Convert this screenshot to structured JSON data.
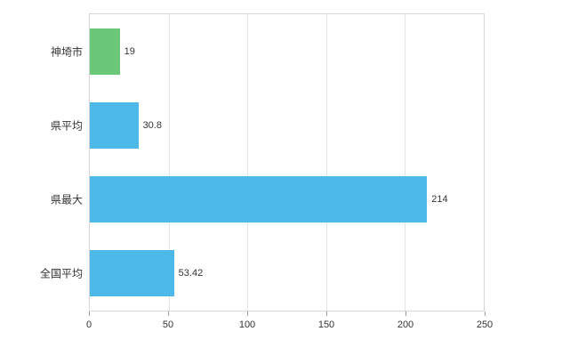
{
  "chart_data": {
    "type": "bar",
    "orientation": "horizontal",
    "title": "",
    "xlabel": "",
    "ylabel": "",
    "categories": [
      "神埼市",
      "県平均",
      "県最大",
      "全国平均"
    ],
    "values": [
      19,
      30.8,
      214,
      53.42
    ],
    "value_labels": [
      "19",
      "30.8",
      "214",
      "53.42"
    ],
    "bar_colors": [
      "#6cc879",
      "#4db9e9",
      "#4db9e9",
      "#4db9e9"
    ],
    "xlim": [
      0,
      250
    ],
    "x_ticks": [
      0,
      50,
      100,
      150,
      200,
      250
    ],
    "grid": true,
    "legend": "none"
  },
  "colors": {
    "plot_border": "#d6d6d6",
    "gridline": "#e4e4e4",
    "tick": "#9b9b9b",
    "text": "#333333",
    "background": "#ffffff"
  }
}
